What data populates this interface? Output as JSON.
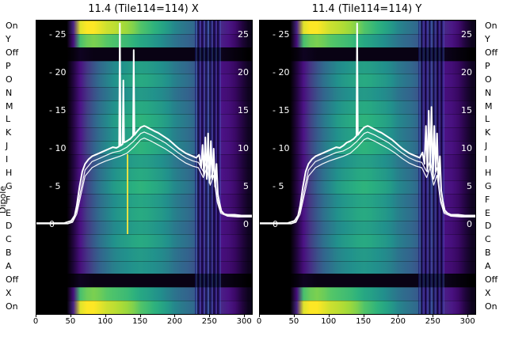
{
  "figure": {
    "bg": "#ffffff",
    "line_color": "#ffffff"
  },
  "y_tick_labels_left": [
    "- 25",
    "- 20",
    "- 15",
    "- 10",
    "- 5",
    "0"
  ],
  "y_tick_labels_right": [
    "25",
    "20",
    "15",
    "10",
    "5",
    "0"
  ],
  "chart_data": {
    "type": "heatmap",
    "description_overlay": "line",
    "x_range": [
      0,
      310
    ],
    "x_ticks": [
      0,
      50,
      100,
      150,
      200,
      250,
      300
    ],
    "line_y_axis": {
      "min": 0,
      "max": 25,
      "ticks": [
        25,
        20,
        15,
        10,
        5,
        0
      ]
    },
    "dipole_axis": {
      "label": "Dipole"
    },
    "rows": [
      {
        "label": "On",
        "profile": "on",
        "scale": 1
      },
      {
        "label": "Y",
        "profile": "xy",
        "scale": 1
      },
      {
        "label": "Off",
        "profile": "off",
        "scale": 1
      },
      {
        "label": "P",
        "profile": "dipole",
        "scale": 0.95
      },
      {
        "label": "O",
        "profile": "dipole",
        "scale": 1.0
      },
      {
        "label": "N",
        "profile": "dipole",
        "scale": 0.92
      },
      {
        "label": "M",
        "profile": "dipole",
        "scale": 1.0
      },
      {
        "label": "L",
        "profile": "dipole",
        "scale": 1.05
      },
      {
        "label": "K",
        "profile": "dipole",
        "scale": 1.0
      },
      {
        "label": "J",
        "profile": "dipole",
        "scale": 1.05
      },
      {
        "label": "I",
        "profile": "dipole",
        "scale": 0.95
      },
      {
        "label": "H",
        "profile": "dipole",
        "scale": 1.0
      },
      {
        "label": "G",
        "profile": "dipole",
        "scale": 1.05
      },
      {
        "label": "F",
        "profile": "dipole",
        "scale": 0.98
      },
      {
        "label": "E",
        "profile": "dipole",
        "scale": 1.0
      },
      {
        "label": "D",
        "profile": "dipole",
        "scale": 0.95
      },
      {
        "label": "C",
        "profile": "dipole",
        "scale": 1.0
      },
      {
        "label": "B",
        "profile": "dipole",
        "scale": 0.92
      },
      {
        "label": "A",
        "profile": "dipole",
        "scale": 0.9
      },
      {
        "label": "Off",
        "profile": "off",
        "scale": 1
      },
      {
        "label": "X",
        "profile": "xy",
        "scale": 1
      },
      {
        "label": "On",
        "profile": "on",
        "scale": 1
      }
    ],
    "profiles": {
      "on": [
        0,
        0,
        0,
        0,
        0,
        0.25,
        0.95,
        1,
        1,
        0.96,
        0.92,
        0.9,
        0.87,
        0.84,
        0.8,
        0.74,
        0.7,
        0.66,
        0.62,
        0.58,
        0.52,
        0.48,
        0.45,
        0.42,
        0.2,
        0.36,
        0.16,
        0.26,
        0.23,
        0.18,
        0.1,
        0.04
      ],
      "xy": [
        0,
        0,
        0,
        0,
        0,
        0.2,
        0.72,
        0.78,
        0.8,
        0.78,
        0.75,
        0.73,
        0.71,
        0.69,
        0.66,
        0.62,
        0.6,
        0.57,
        0.54,
        0.5,
        0.46,
        0.43,
        0.41,
        0.38,
        0.18,
        0.32,
        0.14,
        0.24,
        0.21,
        0.16,
        0.09,
        0.04
      ],
      "off": [
        0,
        0,
        0,
        0,
        0,
        0.02,
        0.05,
        0.04,
        0.03,
        0.03,
        0.03,
        0.03,
        0.03,
        0.03,
        0.03,
        0.03,
        0.03,
        0.03,
        0.03,
        0.03,
        0.03,
        0.03,
        0.03,
        0.03,
        0.02,
        0.03,
        0.02,
        0.04,
        0.03,
        0.02,
        0.01,
        0
      ],
      "dipole": [
        0,
        0,
        0,
        0,
        0,
        0.1,
        0.22,
        0.3,
        0.38,
        0.45,
        0.5,
        0.55,
        0.58,
        0.6,
        0.62,
        0.63,
        0.62,
        0.6,
        0.58,
        0.55,
        0.5,
        0.47,
        0.44,
        0.4,
        0.18,
        0.32,
        0.14,
        0.22,
        0.2,
        0.16,
        0.1,
        0.05
      ]
    },
    "colormap_stops": [
      [
        0.0,
        "#000000"
      ],
      [
        0.06,
        "#120428"
      ],
      [
        0.14,
        "#35065c"
      ],
      [
        0.22,
        "#4c1286"
      ],
      [
        0.3,
        "#433e85"
      ],
      [
        0.4,
        "#34618d"
      ],
      [
        0.55,
        "#21918c"
      ],
      [
        0.65,
        "#2ab07f"
      ],
      [
        0.75,
        "#55c667"
      ],
      [
        0.85,
        "#a0da39"
      ],
      [
        1.0,
        "#fde725"
      ]
    ],
    "rfi_stripes": {
      "x_start": 228,
      "x_end": 266
    },
    "features": [
      {
        "panel": 0,
        "name": "yellow-streak",
        "x": 131,
        "row_start": 10,
        "row_end": 16,
        "color": "#f0e442"
      }
    ],
    "panels": [
      {
        "title": "11.4 (Tile114=114) X",
        "main_line": [
          [
            0,
            0.2
          ],
          [
            40,
            0.2
          ],
          [
            50,
            0.5
          ],
          [
            55,
            1.2
          ],
          [
            58,
            2.5
          ],
          [
            62,
            5
          ],
          [
            66,
            7
          ],
          [
            70,
            8
          ],
          [
            75,
            8.6
          ],
          [
            80,
            9
          ],
          [
            85,
            9.2
          ],
          [
            90,
            9.4
          ],
          [
            95,
            9.6
          ],
          [
            100,
            9.8
          ],
          [
            105,
            10
          ],
          [
            110,
            10.2
          ],
          [
            115,
            10.1
          ],
          [
            119,
            10.3
          ],
          [
            120,
            26.5
          ],
          [
            121,
            10.4
          ],
          [
            124,
            10.6
          ],
          [
            125,
            19
          ],
          [
            126,
            10.8
          ],
          [
            130,
            11
          ],
          [
            135,
            11.3
          ],
          [
            139,
            11.7
          ],
          [
            140,
            23
          ],
          [
            141,
            11.8
          ],
          [
            145,
            12.3
          ],
          [
            150,
            12.8
          ],
          [
            155,
            13
          ],
          [
            158,
            12.9
          ],
          [
            162,
            12.7
          ],
          [
            166,
            12.5
          ],
          [
            170,
            12.3
          ],
          [
            175,
            12.1
          ],
          [
            180,
            11.8
          ],
          [
            185,
            11.5
          ],
          [
            190,
            11.2
          ],
          [
            195,
            10.8
          ],
          [
            200,
            10.4
          ],
          [
            205,
            10
          ],
          [
            210,
            9.7
          ],
          [
            215,
            9.4
          ],
          [
            220,
            9.2
          ],
          [
            225,
            9
          ],
          [
            230,
            8.8
          ],
          [
            234,
            9.2
          ],
          [
            237,
            7.5
          ],
          [
            239,
            10.5
          ],
          [
            241,
            6.5
          ],
          [
            243,
            11.5
          ],
          [
            245,
            6
          ],
          [
            247,
            12
          ],
          [
            249,
            5.5
          ],
          [
            251,
            11
          ],
          [
            253,
            6
          ],
          [
            255,
            10
          ],
          [
            257,
            5
          ],
          [
            259,
            8
          ],
          [
            261,
            4
          ],
          [
            263,
            3
          ],
          [
            266,
            1.8
          ],
          [
            270,
            1.4
          ],
          [
            275,
            1.3
          ],
          [
            285,
            1.3
          ],
          [
            295,
            1.2
          ],
          [
            305,
            1.2
          ],
          [
            310,
            1.2
          ]
        ]
      },
      {
        "title": "11.4 (Tile114=114) Y",
        "main_line": [
          [
            0,
            0.2
          ],
          [
            40,
            0.2
          ],
          [
            50,
            0.5
          ],
          [
            55,
            1.2
          ],
          [
            58,
            2.5
          ],
          [
            62,
            5
          ],
          [
            66,
            7
          ],
          [
            70,
            8
          ],
          [
            75,
            8.6
          ],
          [
            80,
            9
          ],
          [
            85,
            9.2
          ],
          [
            90,
            9.4
          ],
          [
            95,
            9.6
          ],
          [
            100,
            9.8
          ],
          [
            105,
            10
          ],
          [
            110,
            10.2
          ],
          [
            115,
            10.1
          ],
          [
            120,
            10.4
          ],
          [
            125,
            10.8
          ],
          [
            130,
            11
          ],
          [
            135,
            11.3
          ],
          [
            139,
            11.7
          ],
          [
            140,
            26.5
          ],
          [
            141,
            11.8
          ],
          [
            145,
            12.3
          ],
          [
            150,
            12.8
          ],
          [
            155,
            13
          ],
          [
            158,
            12.9
          ],
          [
            162,
            12.7
          ],
          [
            166,
            12.5
          ],
          [
            170,
            12.3
          ],
          [
            175,
            12.1
          ],
          [
            180,
            11.8
          ],
          [
            185,
            11.5
          ],
          [
            190,
            11.2
          ],
          [
            195,
            10.8
          ],
          [
            200,
            10.4
          ],
          [
            205,
            10
          ],
          [
            210,
            9.7
          ],
          [
            215,
            9.4
          ],
          [
            220,
            9.2
          ],
          [
            225,
            9
          ],
          [
            230,
            8.8
          ],
          [
            234,
            9.5
          ],
          [
            237,
            8
          ],
          [
            239,
            13
          ],
          [
            241,
            7
          ],
          [
            243,
            15
          ],
          [
            245,
            7.5
          ],
          [
            247,
            15.5
          ],
          [
            249,
            6
          ],
          [
            251,
            13
          ],
          [
            253,
            7
          ],
          [
            255,
            12
          ],
          [
            257,
            5.5
          ],
          [
            259,
            9
          ],
          [
            261,
            4.5
          ],
          [
            263,
            3.2
          ],
          [
            266,
            1.9
          ],
          [
            270,
            1.5
          ],
          [
            275,
            1.3
          ],
          [
            285,
            1.3
          ],
          [
            295,
            1.2
          ],
          [
            305,
            1.2
          ],
          [
            310,
            1.2
          ]
        ]
      }
    ],
    "secondary_lines": [
      [
        [
          0,
          0.15
        ],
        [
          45,
          0.15
        ],
        [
          52,
          0.4
        ],
        [
          58,
          1.8
        ],
        [
          63,
          4.2
        ],
        [
          70,
          7.2
        ],
        [
          80,
          8.3
        ],
        [
          90,
          8.7
        ],
        [
          100,
          9.1
        ],
        [
          110,
          9.5
        ],
        [
          120,
          9.7
        ],
        [
          130,
          10.2
        ],
        [
          140,
          11
        ],
        [
          150,
          12
        ],
        [
          155,
          12.2
        ],
        [
          165,
          11.8
        ],
        [
          175,
          11.3
        ],
        [
          185,
          10.8
        ],
        [
          195,
          10.1
        ],
        [
          205,
          9.4
        ],
        [
          215,
          8.8
        ],
        [
          225,
          8.4
        ],
        [
          233,
          8.2
        ],
        [
          240,
          7
        ],
        [
          245,
          8.5
        ],
        [
          250,
          6
        ],
        [
          255,
          7.5
        ],
        [
          260,
          3.5
        ],
        [
          265,
          1.7
        ],
        [
          275,
          1.2
        ],
        [
          290,
          1.1
        ],
        [
          310,
          1.1
        ]
      ],
      [
        [
          0,
          0.1
        ],
        [
          45,
          0.1
        ],
        [
          52,
          0.3
        ],
        [
          58,
          1.4
        ],
        [
          63,
          3.5
        ],
        [
          70,
          6.4
        ],
        [
          80,
          7.5
        ],
        [
          90,
          8
        ],
        [
          100,
          8.4
        ],
        [
          110,
          8.7
        ],
        [
          120,
          9
        ],
        [
          130,
          9.4
        ],
        [
          140,
          10.2
        ],
        [
          150,
          11.2
        ],
        [
          155,
          11.4
        ],
        [
          165,
          11
        ],
        [
          175,
          10.5
        ],
        [
          185,
          10
        ],
        [
          195,
          9.4
        ],
        [
          205,
          8.7
        ],
        [
          215,
          8.1
        ],
        [
          225,
          7.7
        ],
        [
          233,
          7.5
        ],
        [
          240,
          6.2
        ],
        [
          245,
          7.5
        ],
        [
          250,
          5.2
        ],
        [
          255,
          6.5
        ],
        [
          260,
          3
        ],
        [
          265,
          1.5
        ],
        [
          275,
          1.1
        ],
        [
          290,
          1.0
        ],
        [
          310,
          1.0
        ]
      ]
    ]
  }
}
